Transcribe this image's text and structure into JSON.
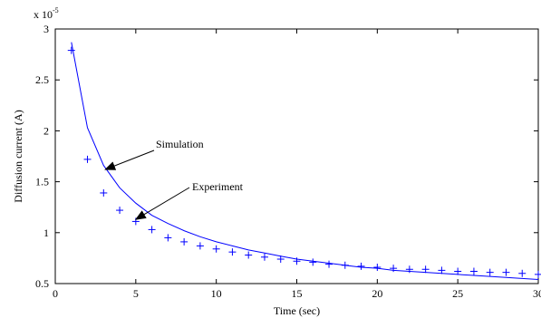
{
  "chart_data": {
    "type": "line",
    "title": "",
    "xlabel": "Time (sec)",
    "ylabel": "Diffusion current (A)",
    "exponent_label": "x 10",
    "exponent_power": "-5",
    "xlim": [
      0,
      30
    ],
    "ylim": [
      0.5,
      3
    ],
    "x_ticks": [
      0,
      5,
      10,
      15,
      20,
      25,
      30
    ],
    "x_tick_labels": [
      "0",
      "5",
      "10",
      "15",
      "20",
      "25",
      "30"
    ],
    "y_ticks": [
      0.5,
      1,
      1.5,
      2,
      2.5,
      3
    ],
    "y_tick_labels": [
      "0.5",
      "1",
      "1.5",
      "2",
      "2.5",
      "3"
    ],
    "grid": false,
    "line_color": "#0000ff",
    "series": [
      {
        "name": "Simulation",
        "style": "line",
        "x": [
          1,
          2,
          3,
          4,
          5,
          6,
          7,
          8,
          9,
          10,
          11,
          12,
          13,
          14,
          15,
          16,
          17,
          18,
          19,
          20,
          21,
          22,
          23,
          24,
          25,
          26,
          27,
          28,
          29,
          30
        ],
        "y": [
          2.87,
          2.03,
          1.66,
          1.44,
          1.29,
          1.17,
          1.09,
          1.02,
          0.96,
          0.91,
          0.87,
          0.83,
          0.8,
          0.77,
          0.74,
          0.72,
          0.7,
          0.68,
          0.66,
          0.65,
          0.63,
          0.62,
          0.61,
          0.6,
          0.59,
          0.58,
          0.57,
          0.56,
          0.55,
          0.54
        ]
      },
      {
        "name": "Experiment",
        "style": "marker",
        "marker": "+",
        "x": [
          1,
          2,
          3,
          4,
          5,
          6,
          7,
          8,
          9,
          10,
          11,
          12,
          13,
          14,
          15,
          16,
          17,
          18,
          19,
          20,
          21,
          22,
          23,
          24,
          25,
          26,
          27,
          28,
          29,
          30
        ],
        "y": [
          2.79,
          1.72,
          1.39,
          1.22,
          1.11,
          1.03,
          0.95,
          0.91,
          0.87,
          0.84,
          0.81,
          0.78,
          0.76,
          0.74,
          0.72,
          0.71,
          0.69,
          0.68,
          0.67,
          0.66,
          0.65,
          0.64,
          0.64,
          0.63,
          0.62,
          0.62,
          0.61,
          0.61,
          0.6,
          0.59
        ]
      }
    ],
    "annotations": [
      {
        "text": "Simulation",
        "target_x": 3.1,
        "target_y": 1.62
      },
      {
        "text": "Experiment",
        "target_x": 5.0,
        "target_y": 1.13
      }
    ]
  }
}
